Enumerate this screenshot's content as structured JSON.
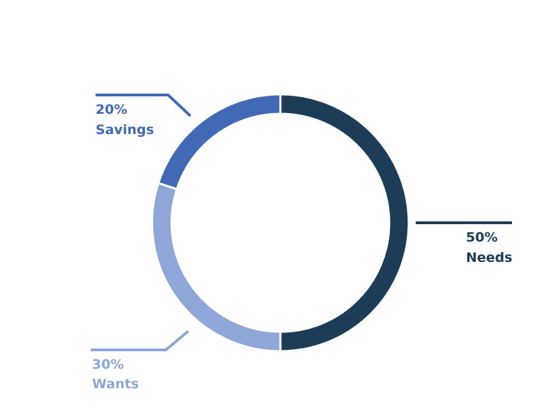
{
  "chart_data": {
    "type": "pie",
    "style": "donut",
    "title": "",
    "legend": "none",
    "slices": [
      {
        "name": "Needs",
        "percent_label": "50%",
        "value": 50,
        "color": "#1d3d57"
      },
      {
        "name": "Wants",
        "percent_label": "30%",
        "value": 30,
        "color": "#8ea6d8"
      },
      {
        "name": "Savings",
        "percent_label": "20%",
        "value": 20,
        "color": "#4169b5"
      }
    ]
  }
}
